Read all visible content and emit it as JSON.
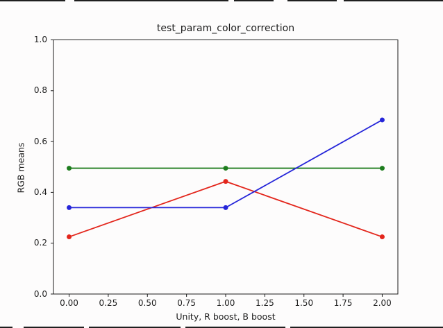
{
  "window": {
    "background_color": "#fdfcfc",
    "edge_artifact_color": "#1f1f1f"
  },
  "chart_data": {
    "type": "line",
    "title": "test_param_color_correction",
    "xlabel": "Unity, R boost, B boost",
    "ylabel": "RGB means",
    "x": [
      0,
      1,
      2
    ],
    "series": [
      {
        "name": "red",
        "color": "#e3261c",
        "values": [
          0.225,
          0.443,
          0.225
        ]
      },
      {
        "name": "green",
        "color": "#1e7d1e",
        "values": [
          0.495,
          0.495,
          0.495
        ]
      },
      {
        "name": "blue",
        "color": "#2626d9",
        "values": [
          0.34,
          0.34,
          0.685
        ]
      }
    ],
    "xlim": [
      -0.1,
      2.1
    ],
    "ylim": [
      0.0,
      1.0
    ],
    "xticks": {
      "values": [
        0,
        0.25,
        0.5,
        0.75,
        1.0,
        1.25,
        1.5,
        1.75,
        2.0
      ],
      "labels": [
        "0.00",
        "0.25",
        "0.50",
        "0.75",
        "1.00",
        "1.25",
        "1.50",
        "1.75",
        "2.00"
      ]
    },
    "yticks": {
      "values": [
        0.0,
        0.2,
        0.4,
        0.6,
        0.8,
        1.0
      ],
      "labels": [
        "0.0",
        "0.2",
        "0.4",
        "0.6",
        "0.8",
        "1.0"
      ]
    },
    "grid": false,
    "legend": "none",
    "marker": "circle",
    "marker_size": 7,
    "line_width": 1.8,
    "spine_color": "#1a1a1a"
  }
}
